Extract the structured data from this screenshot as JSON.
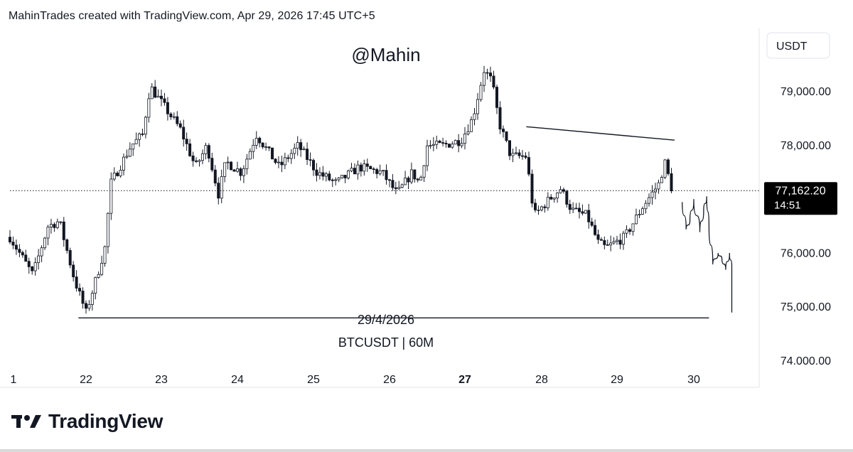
{
  "header": {
    "attribution": "MahinTrades created with TradingView.com, Apr 29, 2026 17:45 UTC+5"
  },
  "footer": {
    "brand": "TradingView"
  },
  "chart_data": {
    "type": "candlestick",
    "watermark": "@Mahin",
    "date_label": "29/4/2026",
    "symbol_label": "BTCUSDT | 60M",
    "currency": "USDT",
    "ylim": [
      73600,
      80200
    ],
    "y_ticks": [
      {
        "value": 79000,
        "label": "79,000.00"
      },
      {
        "value": 78000,
        "label": "78,000.00"
      },
      {
        "value": 76000,
        "label": "76,000.00"
      },
      {
        "value": 75000,
        "label": "75,000.00"
      },
      {
        "value": 74000,
        "label": "74.000.00"
      }
    ],
    "x_ticks": [
      {
        "label": "1",
        "bold": false
      },
      {
        "label": "22",
        "bold": false
      },
      {
        "label": "23",
        "bold": false
      },
      {
        "label": "24",
        "bold": false
      },
      {
        "label": "25",
        "bold": false
      },
      {
        "label": "26",
        "bold": false
      },
      {
        "label": "27",
        "bold": true
      },
      {
        "label": "28",
        "bold": false
      },
      {
        "label": "29",
        "bold": false
      },
      {
        "label": "30",
        "bold": false
      }
    ],
    "last_price": {
      "value": 77162.2,
      "label": "77,162.20",
      "countdown": "14:51"
    },
    "up_color": "#ffffff",
    "down_color": "#131722",
    "trendlines": [
      {
        "name": "support",
        "x_days": [
          21.9,
          30.2
        ],
        "y": [
          74800,
          74800
        ]
      },
      {
        "name": "resistance",
        "x_days": [
          27.8,
          29.75
        ],
        "y": [
          78350,
          78100
        ]
      }
    ],
    "projection_path": [
      [
        29.85,
        76950
      ],
      [
        29.9,
        76450
      ],
      [
        29.95,
        76600
      ],
      [
        30.0,
        77000
      ],
      [
        30.08,
        76400
      ],
      [
        30.13,
        76800
      ],
      [
        30.17,
        77050
      ],
      [
        30.2,
        76500
      ],
      [
        30.25,
        75800
      ],
      [
        30.32,
        76000
      ],
      [
        30.37,
        75900
      ],
      [
        30.42,
        75700
      ],
      [
        30.47,
        76000
      ],
      [
        30.5,
        75750
      ],
      [
        30.5,
        74900
      ]
    ],
    "path_keyframes": [
      [
        21.0,
        76300
      ],
      [
        21.3,
        75600
      ],
      [
        21.5,
        76500
      ],
      [
        21.65,
        76600
      ],
      [
        21.85,
        75500
      ],
      [
        22.0,
        74900
      ],
      [
        22.15,
        75600
      ],
      [
        22.25,
        76100
      ],
      [
        22.33,
        77300
      ],
      [
        22.6,
        78000
      ],
      [
        22.75,
        78200
      ],
      [
        22.85,
        79100
      ],
      [
        23.1,
        78600
      ],
      [
        23.25,
        78300
      ],
      [
        23.45,
        77600
      ],
      [
        23.6,
        78000
      ],
      [
        23.75,
        77100
      ],
      [
        23.85,
        77700
      ],
      [
        24.05,
        77500
      ],
      [
        24.25,
        78200
      ],
      [
        24.55,
        77600
      ],
      [
        24.8,
        78000
      ],
      [
        25.05,
        77500
      ],
      [
        25.3,
        77300
      ],
      [
        25.6,
        77600
      ],
      [
        25.9,
        77500
      ],
      [
        26.1,
        77100
      ],
      [
        26.3,
        77500
      ],
      [
        26.4,
        77300
      ],
      [
        26.5,
        78000
      ],
      [
        26.7,
        78000
      ],
      [
        26.95,
        78100
      ],
      [
        27.1,
        78500
      ],
      [
        27.25,
        79400
      ],
      [
        27.35,
        79200
      ],
      [
        27.45,
        78400
      ],
      [
        27.6,
        77800
      ],
      [
        27.8,
        77800
      ],
      [
        27.9,
        76700
      ],
      [
        28.1,
        77000
      ],
      [
        28.25,
        77200
      ],
      [
        28.4,
        76800
      ],
      [
        28.6,
        76700
      ],
      [
        28.75,
        76200
      ],
      [
        28.85,
        76100
      ],
      [
        29.1,
        76300
      ],
      [
        29.35,
        76900
      ],
      [
        29.55,
        77300
      ],
      [
        29.62,
        77700
      ],
      [
        29.72,
        77160
      ]
    ]
  }
}
